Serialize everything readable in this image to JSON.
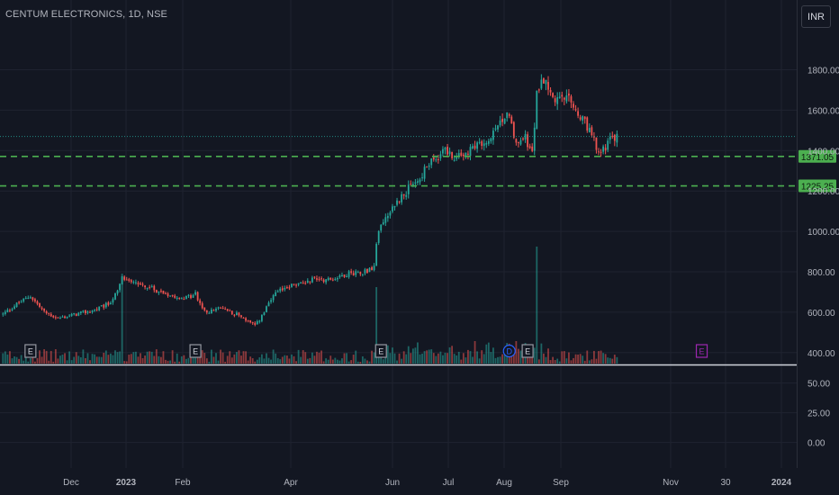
{
  "header": {
    "title": "CENTUM ELECTRONICS, 1D, NSE",
    "currency": "INR"
  },
  "colors": {
    "background": "#131722",
    "grid": "#1f2330",
    "up": "#26a69a",
    "down": "#ef5350",
    "level_line": "#4caf50",
    "axis_text": "#b2b5be",
    "earnings_marker": "#9598a1",
    "future_earnings_marker": "#9c27b0",
    "dividend_marker": "#2962ff"
  },
  "chart_data": {
    "type": "candlestick",
    "x_axis": {
      "ticks": [
        {
          "label": "Dec",
          "bold": false
        },
        {
          "label": "2023",
          "bold": true
        },
        {
          "label": "Feb",
          "bold": false
        },
        {
          "label": "Apr",
          "bold": false
        },
        {
          "label": "Jun",
          "bold": false
        },
        {
          "label": "Jul",
          "bold": false
        },
        {
          "label": "Aug",
          "bold": false
        },
        {
          "label": "Sep",
          "bold": false
        },
        {
          "label": "Nov",
          "bold": false
        },
        {
          "label": "30",
          "bold": false
        },
        {
          "label": "2024",
          "bold": true
        }
      ]
    },
    "price_axis": {
      "ticks": [
        "400.00",
        "600.00",
        "800.00",
        "1000.00",
        "1200.00",
        "1400.00",
        "1600.00",
        "1800.00"
      ],
      "range": [
        350,
        1900
      ],
      "scale": "linear"
    },
    "indicator_axis": {
      "ticks": [
        "50.00",
        "25.00",
        "0.00"
      ],
      "range": [
        -20,
        60
      ]
    },
    "horizontal_levels": [
      {
        "value": 1371.05,
        "label": "1371.05",
        "style": "dashed"
      },
      {
        "value": 1225.25,
        "label": "1225.25",
        "style": "dashed"
      }
    ],
    "last_price_line": {
      "value": 1470,
      "style": "dotted"
    },
    "price_path": [
      {
        "i": 0,
        "p": 590
      },
      {
        "i": 6,
        "p": 640
      },
      {
        "i": 12,
        "p": 680
      },
      {
        "i": 18,
        "p": 600
      },
      {
        "i": 24,
        "p": 570
      },
      {
        "i": 32,
        "p": 590
      },
      {
        "i": 40,
        "p": 610
      },
      {
        "i": 46,
        "p": 640
      },
      {
        "i": 50,
        "p": 700
      },
      {
        "i": 52,
        "p": 770
      },
      {
        "i": 56,
        "p": 760
      },
      {
        "i": 64,
        "p": 720
      },
      {
        "i": 72,
        "p": 690
      },
      {
        "i": 80,
        "p": 670
      },
      {
        "i": 84,
        "p": 690
      },
      {
        "i": 88,
        "p": 600
      },
      {
        "i": 96,
        "p": 620
      },
      {
        "i": 104,
        "p": 580
      },
      {
        "i": 110,
        "p": 530
      },
      {
        "i": 114,
        "p": 600
      },
      {
        "i": 118,
        "p": 680
      },
      {
        "i": 124,
        "p": 730
      },
      {
        "i": 130,
        "p": 740
      },
      {
        "i": 136,
        "p": 770
      },
      {
        "i": 142,
        "p": 760
      },
      {
        "i": 150,
        "p": 790
      },
      {
        "i": 156,
        "p": 800
      },
      {
        "i": 160,
        "p": 810
      },
      {
        "i": 162,
        "p": 820
      },
      {
        "i": 163,
        "p": 950
      },
      {
        "i": 165,
        "p": 1040
      },
      {
        "i": 170,
        "p": 1120
      },
      {
        "i": 176,
        "p": 1200
      },
      {
        "i": 182,
        "p": 1260
      },
      {
        "i": 186,
        "p": 1340
      },
      {
        "i": 192,
        "p": 1400
      },
      {
        "i": 198,
        "p": 1360
      },
      {
        "i": 204,
        "p": 1410
      },
      {
        "i": 210,
        "p": 1430
      },
      {
        "i": 216,
        "p": 1500
      },
      {
        "i": 220,
        "p": 1610
      },
      {
        "i": 224,
        "p": 1430
      },
      {
        "i": 228,
        "p": 1460
      },
      {
        "i": 231,
        "p": 1380
      },
      {
        "i": 233,
        "p": 1680
      },
      {
        "i": 235,
        "p": 1780
      },
      {
        "i": 238,
        "p": 1720
      },
      {
        "i": 241,
        "p": 1640
      },
      {
        "i": 246,
        "p": 1660
      },
      {
        "i": 252,
        "p": 1560
      },
      {
        "i": 256,
        "p": 1500
      },
      {
        "i": 260,
        "p": 1380
      },
      {
        "i": 264,
        "p": 1440
      },
      {
        "i": 268,
        "p": 1470
      }
    ],
    "volume_spikes": [
      {
        "i": 52,
        "v": 1.0
      },
      {
        "i": 163,
        "v": 0.85
      },
      {
        "i": 224,
        "v": 0.25
      },
      {
        "i": 233,
        "v": 1.3
      }
    ],
    "events": [
      {
        "type": "E",
        "i": 12
      },
      {
        "type": "E",
        "i": 84
      },
      {
        "type": "E",
        "i": 165
      },
      {
        "type": "D",
        "i": 221
      },
      {
        "type": "E",
        "i": 229
      },
      {
        "type": "E",
        "i": 305,
        "future": true
      }
    ]
  }
}
